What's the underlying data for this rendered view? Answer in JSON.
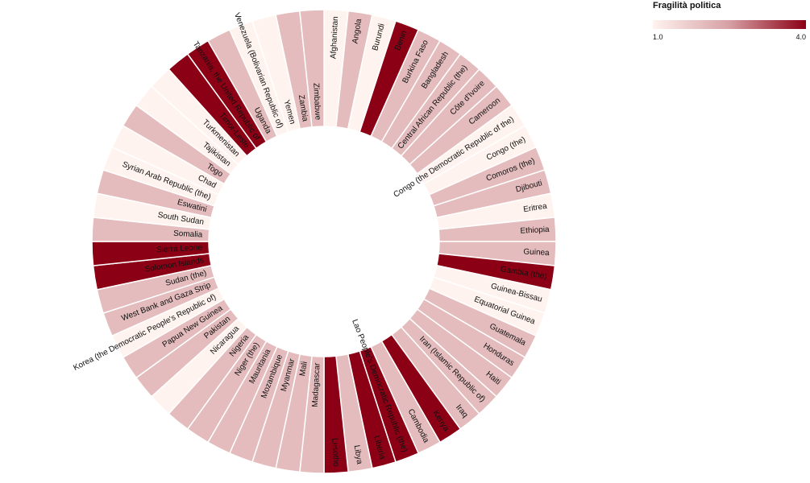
{
  "chart_data": {
    "type": "radial-bar",
    "legend": {
      "title": "Fragilità politica",
      "min_label": "1.0",
      "max_label": "4.0",
      "min": 1.0,
      "max": 4.0,
      "color_low": "#fff3ef",
      "color_mid": "#d6a0a4",
      "color_high": "#8b0014"
    },
    "categories": [
      "Afghanistan",
      "Angola",
      "Burundi",
      "Benin",
      "Burkina Faso",
      "Bangladesh",
      "Central African Republic (the)",
      "Côte d'Ivoire",
      "Cameroon",
      "Congo (the Democratic Republic of the)",
      "Congo (the)",
      "Comoros (the)",
      "Djibouti",
      "Eritrea",
      "Ethiopia",
      "Guinea",
      "Gambia (the)",
      "Guinea-Bissau",
      "Equatorial Guinea",
      "Guatemala",
      "Honduras",
      "Haiti",
      "Iran (Islamic Republic of)",
      "Iraq",
      "Kenya",
      "Cambodia",
      "Lao People's Democratic Republic (the)",
      "Liberia",
      "Libya",
      "Lesotho",
      "Madagascar",
      "Mali",
      "Myanmar",
      "Mozambique",
      "Mauritania",
      "Niger (the)",
      "Nigeria",
      "Nicaragua",
      "Pakistan",
      "Papua New Guinea",
      "Korea (the Democratic People's Republic of)",
      "West Bank and Gaza Strip",
      "Sudan (the)",
      "Solomon Islands",
      "Sierra Leone",
      "Somalia",
      "South Sudan",
      "Eswatini",
      "Syrian Arab Republic (the)",
      "Chad",
      "Togo",
      "Tajikistan",
      "Turkmenistan",
      "Timor-Leste",
      "Tanzania, the United Republic of",
      "Uganda",
      "Venezuela (Bolivarian Republic of)",
      "Yemen",
      "Zambia",
      "Zimbabwe"
    ],
    "values": [
      1,
      2,
      1,
      4,
      2,
      2,
      2,
      2,
      2,
      1,
      1,
      2,
      2,
      1,
      2,
      2,
      4,
      1,
      1,
      2,
      2,
      2,
      2,
      2,
      4,
      2,
      4,
      4,
      2,
      4,
      2,
      2,
      2,
      2,
      2,
      2,
      2,
      1,
      2,
      2,
      1,
      2,
      2,
      4,
      4,
      2,
      1,
      2,
      1,
      1,
      2,
      1,
      1,
      4,
      4,
      2,
      1,
      1,
      2,
      2
    ]
  }
}
